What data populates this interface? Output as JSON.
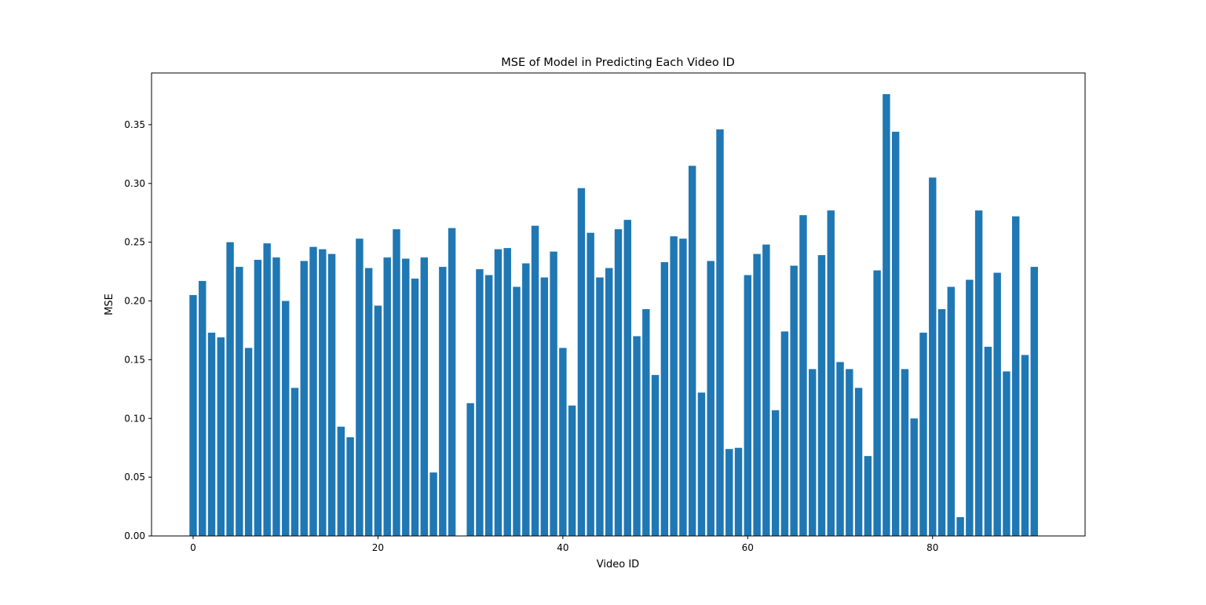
{
  "colors": {
    "bar": "#1f77b4",
    "axes": "#000000",
    "background": "#ffffff"
  },
  "chart_data": {
    "type": "bar",
    "title": "MSE of Model in Predicting Each Video ID",
    "xlabel": "Video ID",
    "ylabel": "MSE",
    "xlim": [
      -4.5,
      96.5
    ],
    "ylim": [
      0,
      0.394
    ],
    "xticks": [
      0,
      20,
      40,
      60,
      80
    ],
    "xtick_labels": [
      "0",
      "20",
      "40",
      "60",
      "80"
    ],
    "yticks": [
      0,
      0.05,
      0.1,
      0.15,
      0.2,
      0.25,
      0.3,
      0.35
    ],
    "ytick_labels": [
      "0.00",
      "0.05",
      "0.10",
      "0.15",
      "0.20",
      "0.25",
      "0.30",
      "0.35"
    ],
    "grid": false,
    "x": [
      0,
      1,
      2,
      3,
      4,
      5,
      6,
      7,
      8,
      9,
      10,
      11,
      12,
      13,
      14,
      15,
      16,
      17,
      18,
      19,
      20,
      21,
      22,
      23,
      24,
      25,
      26,
      27,
      28,
      29,
      30,
      31,
      32,
      33,
      34,
      35,
      36,
      37,
      38,
      39,
      40,
      41,
      42,
      43,
      44,
      45,
      46,
      47,
      48,
      49,
      50,
      51,
      52,
      53,
      54,
      55,
      56,
      57,
      58,
      59,
      60,
      61,
      62,
      63,
      64,
      65,
      66,
      67,
      68,
      69,
      70,
      71,
      72,
      73,
      74,
      75,
      76,
      77,
      78,
      79,
      80,
      81,
      82,
      83,
      84,
      85,
      86,
      87,
      88,
      89,
      90,
      91
    ],
    "values": [
      0.205,
      0.217,
      0.173,
      0.169,
      0.25,
      0.229,
      0.16,
      0.235,
      0.249,
      0.237,
      0.2,
      0.126,
      0.234,
      0.246,
      0.244,
      0.24,
      0.093,
      0.084,
      0.253,
      0.228,
      0.196,
      0.237,
      0.261,
      0.236,
      0.219,
      0.237,
      0.054,
      0.229,
      0.262,
      0.0,
      0.113,
      0.227,
      0.222,
      0.244,
      0.245,
      0.212,
      0.232,
      0.264,
      0.22,
      0.242,
      0.16,
      0.111,
      0.296,
      0.258,
      0.22,
      0.228,
      0.261,
      0.269,
      0.17,
      0.193,
      0.137,
      0.233,
      0.255,
      0.253,
      0.315,
      0.122,
      0.234,
      0.346,
      0.074,
      0.075,
      0.222,
      0.24,
      0.248,
      0.107,
      0.174,
      0.23,
      0.273,
      0.142,
      0.239,
      0.277,
      0.148,
      0.142,
      0.126,
      0.068,
      0.226,
      0.376,
      0.344,
      0.142,
      0.1,
      0.173,
      0.305,
      0.193,
      0.212,
      0.016,
      0.218,
      0.277,
      0.161,
      0.224,
      0.14,
      0.272,
      0.154,
      0.229
    ]
  }
}
